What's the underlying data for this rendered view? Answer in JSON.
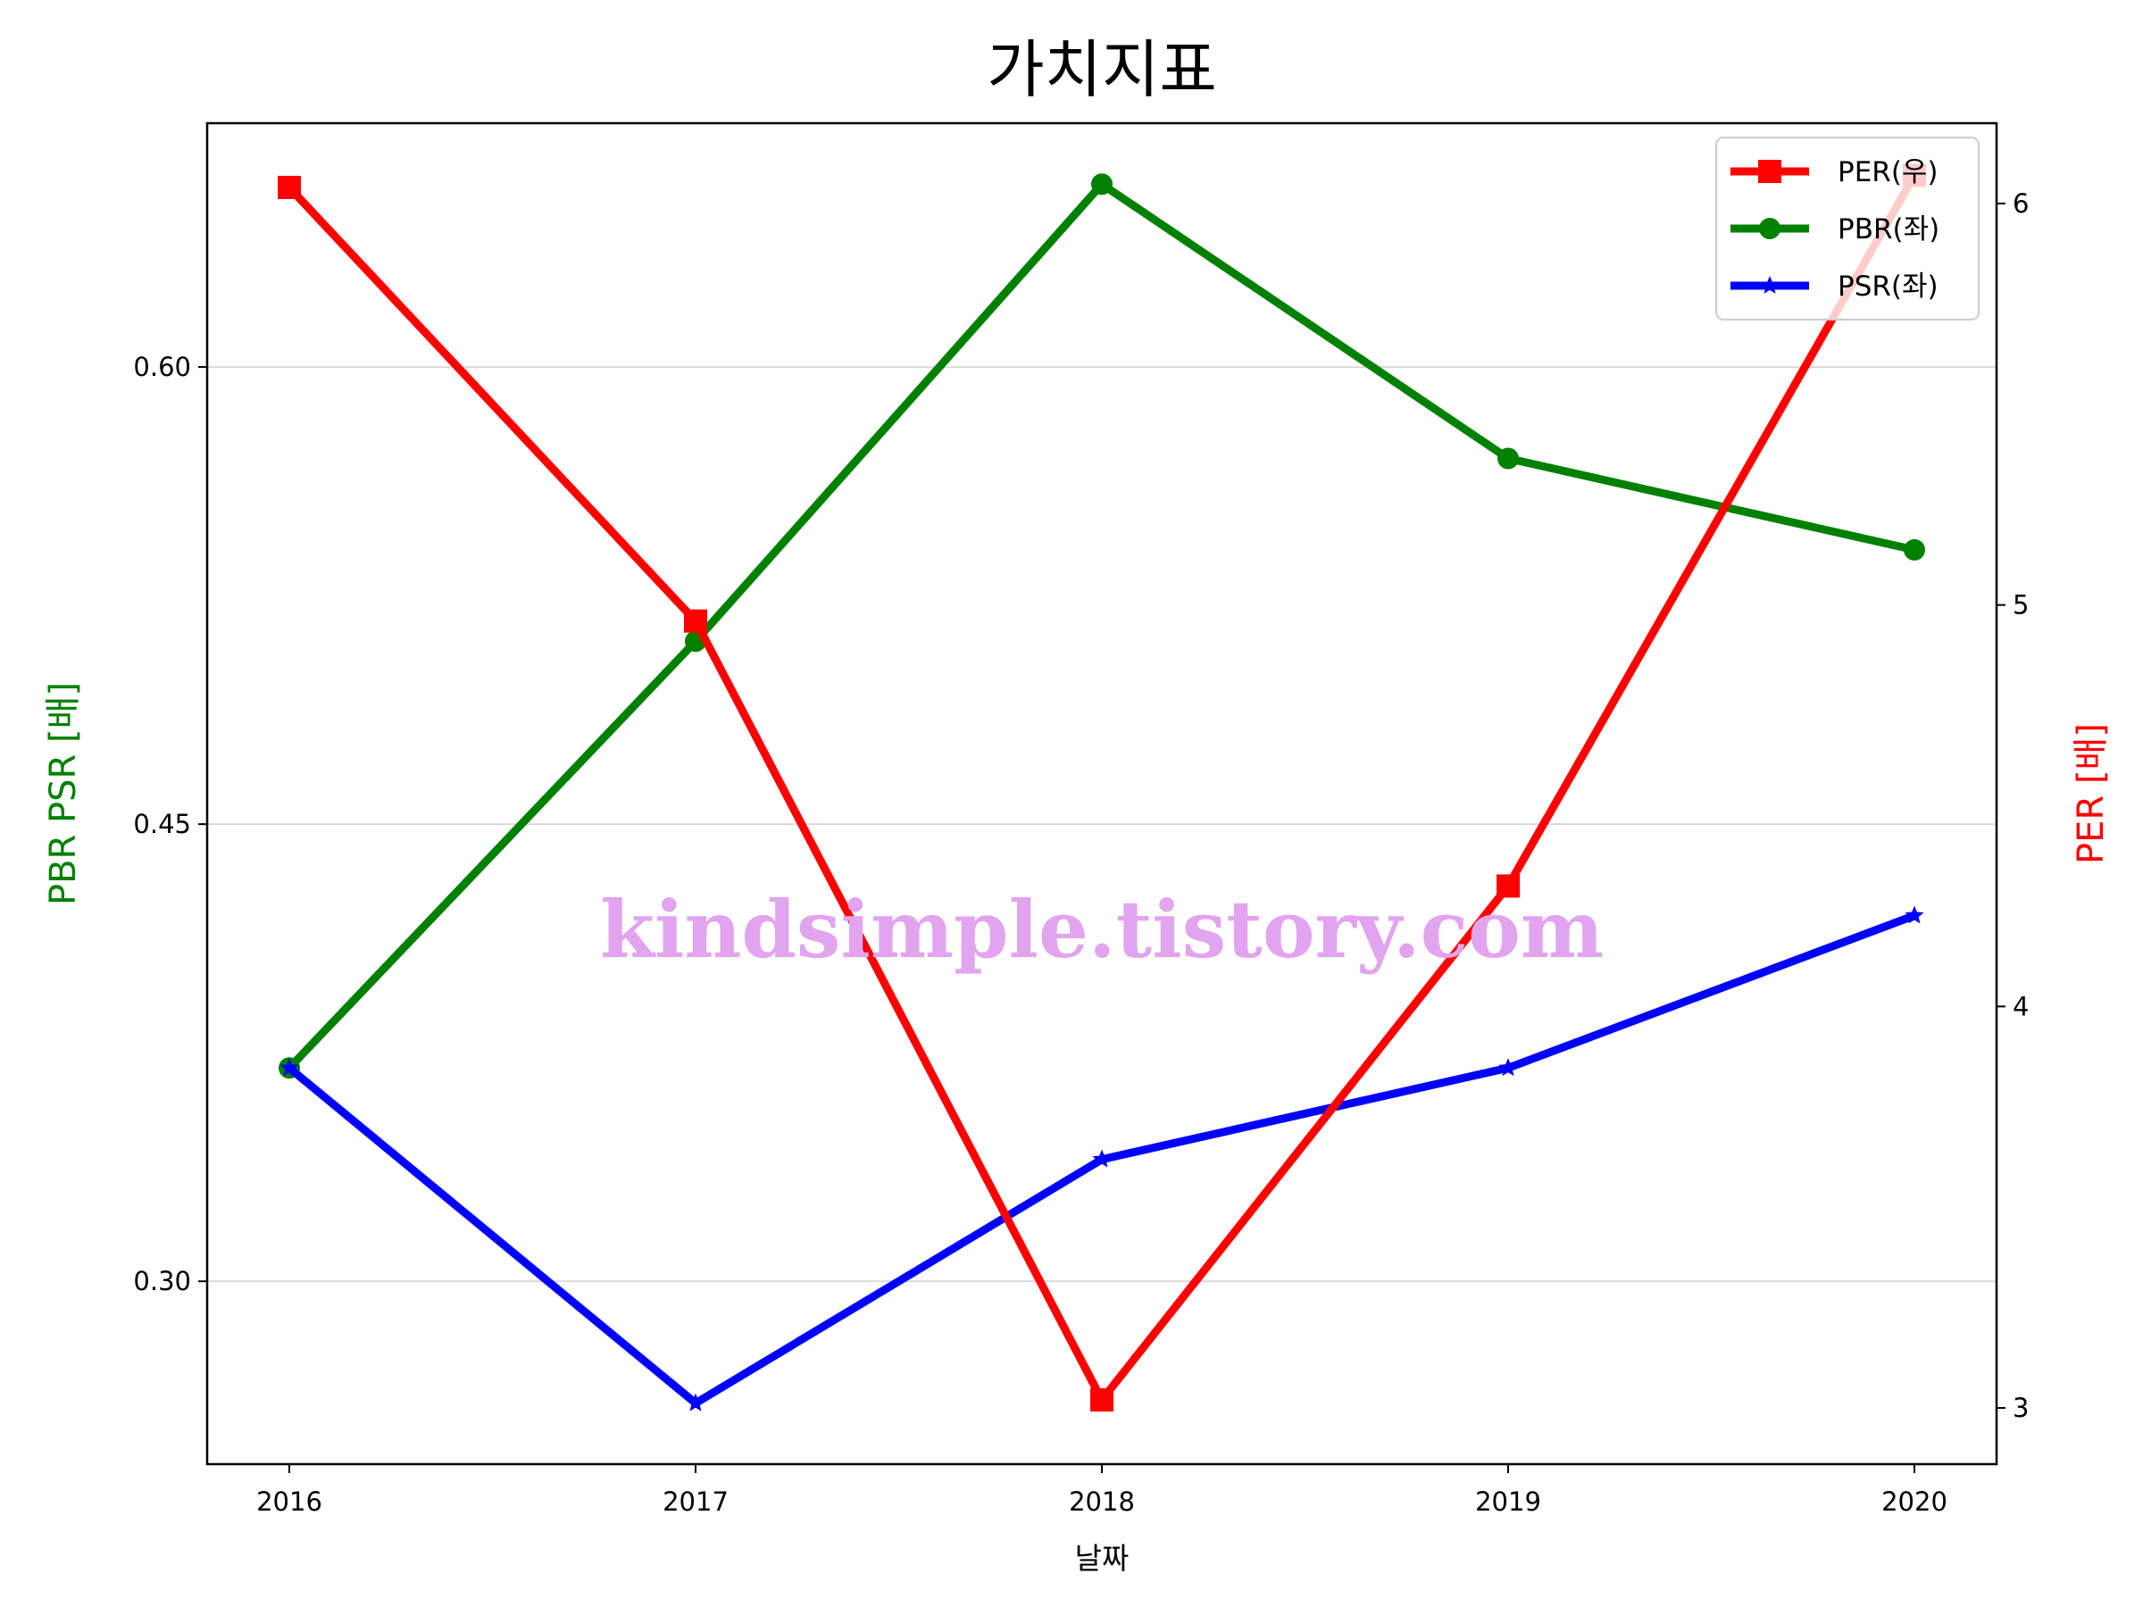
{
  "chart_data": {
    "type": "line",
    "title": "가치지표",
    "xlabel": "날짜",
    "ylabel_left": "PBR PSR [배]",
    "ylabel_right": "PER [배]",
    "categories": [
      "2016",
      "2017",
      "2018",
      "2019",
      "2020"
    ],
    "ylim_left": [
      0.24,
      0.68
    ],
    "ylim_right": [
      2.86,
      6.2
    ],
    "yticks_left": [
      {
        "value": 0.3,
        "label": "0.30"
      },
      {
        "value": 0.45,
        "label": "0.45"
      },
      {
        "value": 0.6,
        "label": "0.60"
      }
    ],
    "yticks_right": [
      {
        "value": 3,
        "label": "3"
      },
      {
        "value": 4,
        "label": "4"
      },
      {
        "value": 5,
        "label": "5"
      },
      {
        "value": 6,
        "label": "6"
      }
    ],
    "grid": "horizontal (left axis)",
    "legend_position": "top-right",
    "series": [
      {
        "name": "PER(우)",
        "axis": "right",
        "color": "#ff0000",
        "marker": "square",
        "values": [
          6.04,
          4.96,
          3.02,
          4.3,
          6.07
        ]
      },
      {
        "name": "PBR(좌)",
        "axis": "left",
        "color": "#008000",
        "marker": "circle",
        "values": [
          0.37,
          0.51,
          0.66,
          0.57,
          0.54
        ]
      },
      {
        "name": "PSR(좌)",
        "axis": "left",
        "color": "#0000ff",
        "marker": "star",
        "values": [
          0.37,
          0.26,
          0.34,
          0.37,
          0.42
        ]
      }
    ],
    "watermark": "kindsimple.tistory.com"
  }
}
